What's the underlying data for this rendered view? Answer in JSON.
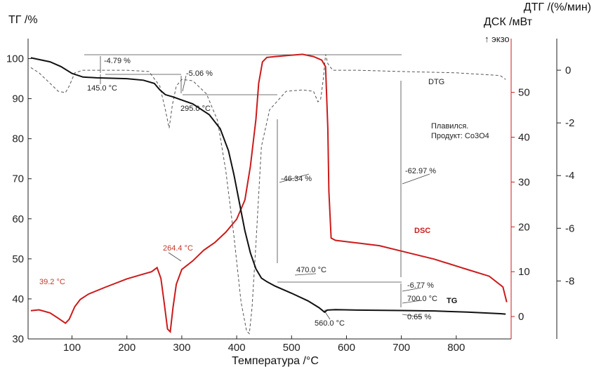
{
  "chart_data": {
    "type": "line",
    "xlabel": "Температура /°C",
    "y_left_label": "ТГ /%",
    "y_right1_label": "ДСК /мВт",
    "y_right2_label": "ДТГ /(%/мин)",
    "exo_label": "↑ экзо",
    "x_ticks": [
      100,
      200,
      300,
      400,
      500,
      600,
      700,
      800
    ],
    "y_left_ticks": [
      30,
      40,
      50,
      60,
      70,
      80,
      90,
      100
    ],
    "y_right1_ticks": [
      0,
      10,
      20,
      30,
      40,
      50
    ],
    "y_right2_ticks": [
      0,
      -2,
      -4,
      -6,
      -8
    ],
    "xlim": [
      20,
      900
    ],
    "ylim_left": [
      30,
      105
    ],
    "ylim_right1": [
      -5,
      62
    ],
    "ylim_right2": [
      -10.2,
      1.2
    ],
    "colors": {
      "tg": "#111111",
      "dsc": "#cc1a1a",
      "dtg": "#555555"
    },
    "series": [
      {
        "name": "TG",
        "axis": "left",
        "x": [
          25,
          60,
          80,
          100,
          120,
          145,
          200,
          230,
          250,
          260,
          270,
          285,
          295,
          320,
          350,
          370,
          385,
          395,
          405,
          415,
          425,
          435,
          445,
          455,
          470,
          500,
          530,
          550,
          560,
          565,
          580,
          620,
          700,
          760,
          820,
          880,
          890
        ],
        "y": [
          100.2,
          99.2,
          98.0,
          96.3,
          95.4,
          95.2,
          95.0,
          94.6,
          93.8,
          92.2,
          91.0,
          90.4,
          89.9,
          88.7,
          86.0,
          82.5,
          77.0,
          71.0,
          64.0,
          57.0,
          51.5,
          47.5,
          45.2,
          44.3,
          43.2,
          41.4,
          39.5,
          37.8,
          36.7,
          37.2,
          37.3,
          37.2,
          37.1,
          37.0,
          36.7,
          36.3,
          36.2
        ]
      },
      {
        "name": "DSC",
        "axis": "right1",
        "x": [
          25,
          40,
          60,
          75,
          88,
          95,
          105,
          115,
          130,
          160,
          200,
          225,
          245,
          255,
          262,
          268,
          274,
          279,
          284,
          290,
          300,
          320,
          340,
          360,
          380,
          400,
          415,
          425,
          435,
          440,
          447,
          455,
          470,
          500,
          520,
          540,
          555,
          562,
          566,
          568,
          572,
          580,
          620,
          660,
          700,
          760,
          820,
          860,
          885,
          892
        ],
        "y": [
          1.3,
          1.5,
          0.8,
          -0.4,
          -1.5,
          -0.6,
          2.2,
          3.8,
          5.0,
          6.5,
          8.4,
          9.3,
          10.0,
          10.9,
          8.5,
          3.0,
          -2.8,
          -3.4,
          2.0,
          7.2,
          10.5,
          12.4,
          14.8,
          16.5,
          18.8,
          21.7,
          26.0,
          33.5,
          44.0,
          52.0,
          56.8,
          57.8,
          58.0,
          58.3,
          58.5,
          58.0,
          57.2,
          55.7,
          42.0,
          28.0,
          17.5,
          17.0,
          16.4,
          15.8,
          14.6,
          12.8,
          10.5,
          9.0,
          6.6,
          3.2
        ]
      },
      {
        "name": "DTG",
        "axis": "right2",
        "x": [
          25,
          40,
          60,
          75,
          88,
          95,
          105,
          120,
          150,
          200,
          240,
          260,
          270,
          277,
          283,
          290,
          300,
          320,
          345,
          365,
          380,
          395,
          408,
          418,
          423,
          428,
          435,
          445,
          460,
          490,
          520,
          540,
          548,
          553,
          558,
          562,
          566,
          575,
          620,
          700,
          800,
          880,
          890
        ],
        "y": [
          0.1,
          -0.1,
          -0.5,
          -0.8,
          -0.85,
          -0.6,
          -0.1,
          0.0,
          0.0,
          0.0,
          -0.05,
          -0.6,
          -1.5,
          -2.2,
          -1.3,
          -0.6,
          -0.35,
          -0.4,
          -0.9,
          -1.9,
          -3.8,
          -6.3,
          -8.8,
          -9.9,
          -10.0,
          -9.0,
          -6.6,
          -2.9,
          -1.5,
          -0.8,
          -0.75,
          -0.8,
          -1.2,
          -1.1,
          -0.3,
          0.6,
          0.25,
          0.0,
          0.0,
          -0.05,
          -0.1,
          -0.2,
          -0.35
        ]
      }
    ],
    "series_labels": {
      "tg": "TG",
      "dsc": "DSC",
      "dtg": "DTG"
    },
    "annotations": {
      "t145": "145.0 °C",
      "t295": "295.0 °C",
      "t470": "470.0 °C",
      "t560": "560.0 °C",
      "t700": "700.0 °C",
      "t39": "39.2 °C",
      "t264": "264.4 °C",
      "m479": "-4.79 %",
      "m506": "-5.06 %",
      "m4634": "-46.34 %",
      "m6297": "-62.97 %",
      "m677": "-6.77 %",
      "m065": "0.65 %",
      "note1": "Плавился.",
      "note2": "Продукт: Co3O4"
    }
  }
}
